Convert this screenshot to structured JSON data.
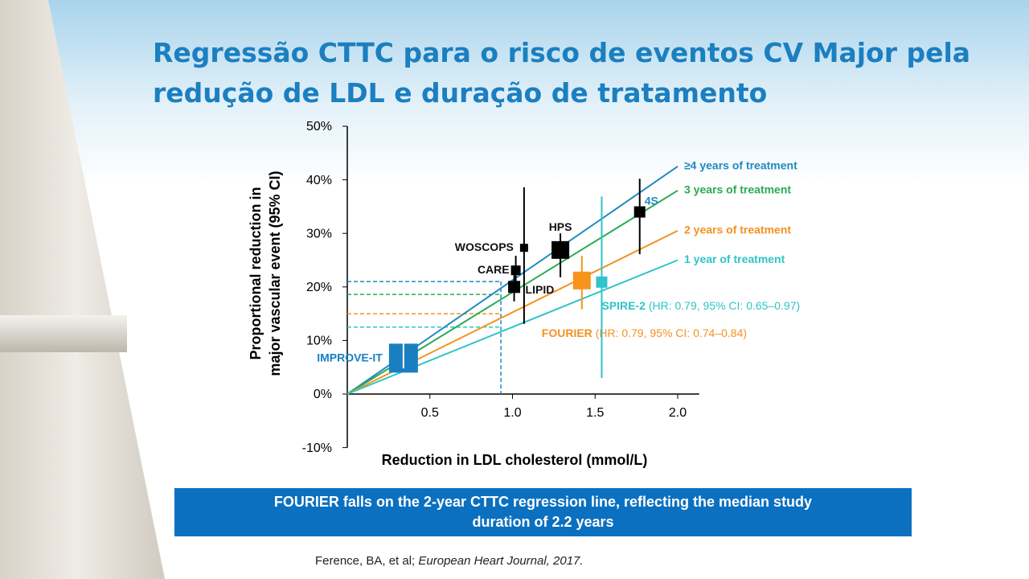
{
  "title_lines": [
    "Regressão CTTC para o risco de eventos CV Major pela",
    "redução de LDL e duração de tratamento"
  ],
  "chart_data": {
    "type": "regression",
    "x_label": "Reduction in LDL cholesterol (mmol/L)",
    "y_label_lines": [
      "Proportional reduction in",
      "major vascular event (95% CI)"
    ],
    "xlim": [
      0,
      2.13
    ],
    "ylim": [
      -10,
      50
    ],
    "xticks": [
      0.5,
      {
        "value": 1.0,
        "label": "1.0"
      },
      1.5,
      {
        "value": 2.0,
        "label": "2.0"
      }
    ],
    "yticks": [
      {
        "value": -10,
        "label": "-10%"
      },
      {
        "value": 0,
        "label": "0%"
      },
      {
        "value": 10,
        "label": "10%"
      },
      {
        "value": 20,
        "label": "20%"
      },
      {
        "value": 30,
        "label": "30%"
      },
      {
        "value": 40,
        "label": "40%"
      },
      {
        "value": 50,
        "label": "50%"
      }
    ],
    "series": [
      {
        "name": "≥4 years of treatment",
        "color": "#1f8ac0",
        "x": [
          0,
          2.0
        ],
        "values": [
          0,
          42.5
        ],
        "reference_y": 21
      },
      {
        "name": "3 years of treatment",
        "color": "#2aaa55",
        "x": [
          0,
          2.0
        ],
        "values": [
          0,
          38
        ],
        "reference_y": 18.6
      },
      {
        "name": "2 years of treatment",
        "color": "#f39220",
        "x": [
          0,
          2.0
        ],
        "values": [
          0,
          30.5
        ],
        "reference_y": 15
      },
      {
        "name": "1 year of treatment",
        "color": "#2ec4c8",
        "x": [
          0,
          2.0
        ],
        "values": [
          0,
          25
        ],
        "reference_y": 12.5
      }
    ],
    "reference_x": 0.93,
    "points": [
      {
        "name": "IMPROVE-IT",
        "color": "#1a7fc1",
        "label_color": "#1a7fc1",
        "x": 0.34,
        "y": 6.7,
        "ci": [
          4.8,
          9.5
        ],
        "size": 36
      },
      {
        "name": "WOSCOPS",
        "color": "#000000",
        "label_color": "#111111",
        "x": 1.07,
        "y": 27.3,
        "ci": [
          13.1,
          38.6
        ],
        "size": 10
      },
      {
        "name": "CARE",
        "color": "#000000",
        "label_color": "#111111",
        "x": 1.02,
        "y": 23.1,
        "ci": [
          20.3,
          25.8
        ],
        "size": 12
      },
      {
        "name": "LIPID",
        "color": "#000000",
        "label_color": "#111111",
        "x": 1.01,
        "y": 20,
        "ci": [
          17.3,
          22.2
        ],
        "size": 15
      },
      {
        "name": "HPS",
        "color": "#000000",
        "label_color": "#111111",
        "x": 1.29,
        "y": 26.9,
        "ci": [
          21.8,
          30
        ],
        "size": 22
      },
      {
        "name": "4S",
        "color": "#000000",
        "label_color": "#1f8ac0",
        "x": 1.77,
        "y": 34,
        "ci": [
          26.1,
          40.2
        ],
        "size": 14
      },
      {
        "name": "FOURIER",
        "note": "(HR: 0.79, 95% CI: 0.74–0.84)",
        "color": "#f7941d",
        "label_color": "#f39220",
        "x": 1.42,
        "y": 21.2,
        "ci": [
          15.8,
          25.8
        ],
        "size": 22
      },
      {
        "name": "SPIRE-2",
        "note": "(HR: 0.79, 95% CI: 0.65–0.97)",
        "color": "#31c2cc",
        "label_color": "#2ec4c8",
        "x": 1.54,
        "y": 20.9,
        "ci": [
          3,
          36.9
        ],
        "size": 14
      }
    ]
  },
  "callout": "FOURIER falls on the 2-year CTTC regression line, reflecting the median study duration of 2.2 years",
  "citation_authors": "Ference, BA, et al; ",
  "citation_journal": "European Heart Journal, 2017."
}
